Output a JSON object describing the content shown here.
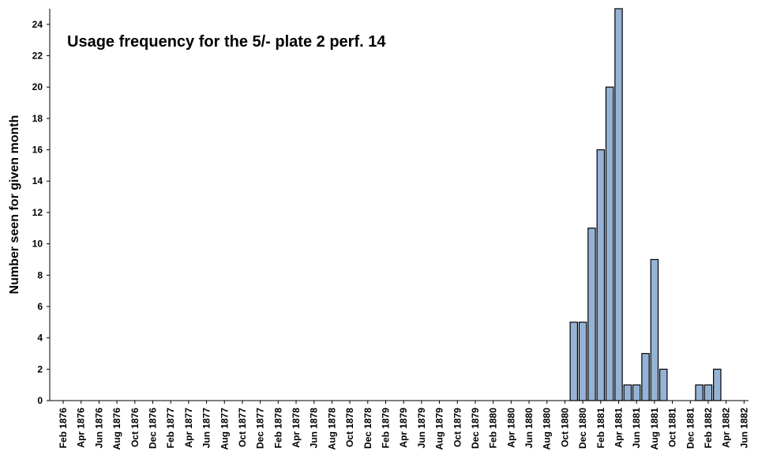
{
  "chart_data": {
    "type": "bar",
    "title": "Usage frequency for the 5/- plate 2 perf. 14",
    "ylabel": "Number seen for given month",
    "xlabel": "",
    "ylim": [
      0,
      25
    ],
    "yticks": [
      0,
      2,
      4,
      6,
      8,
      10,
      12,
      14,
      16,
      18,
      20,
      22,
      24
    ],
    "x_tick_labels": [
      "Feb 1876",
      "Apr 1876",
      "Jun 1876",
      "Aug 1876",
      "Oct 1876",
      "Dec 1876",
      "Feb 1877",
      "Apr 1877",
      "Jun 1877",
      "Aug 1877",
      "Oct 1877",
      "Dec 1877",
      "Feb 1878",
      "Apr 1878",
      "Jun 1878",
      "Aug 1878",
      "Oct 1878",
      "Dec 1878",
      "Feb 1879",
      "Apr 1879",
      "Jun 1879",
      "Aug 1879",
      "Oct 1879",
      "Dec 1879",
      "Feb 1880",
      "Apr 1880",
      "Jun 1880",
      "Aug 1880",
      "Oct 1880",
      "Dec 1880",
      "Feb 1881",
      "Apr 1881",
      "Jun 1881",
      "Aug 1881",
      "Oct 1881",
      "Dec 1881",
      "Feb 1882",
      "Apr 1882",
      "Jun 1882"
    ],
    "categories": [
      "Nov 1880",
      "Dec 1880",
      "Jan 1881",
      "Feb 1881",
      "Mar 1881",
      "Apr 1881",
      "May 1881",
      "Jun 1881",
      "Jul 1881",
      "Aug 1881",
      "Sep 1881",
      "Oct 1881",
      "Nov 1881",
      "Dec 1881",
      "Jan 1882",
      "Feb 1882",
      "Mar 1882"
    ],
    "values": [
      5,
      5,
      11,
      16,
      20,
      25,
      1,
      1,
      3,
      9,
      2,
      0,
      0,
      0,
      1,
      1,
      2
    ],
    "grid": false,
    "bar_color": "#95b3d7"
  }
}
